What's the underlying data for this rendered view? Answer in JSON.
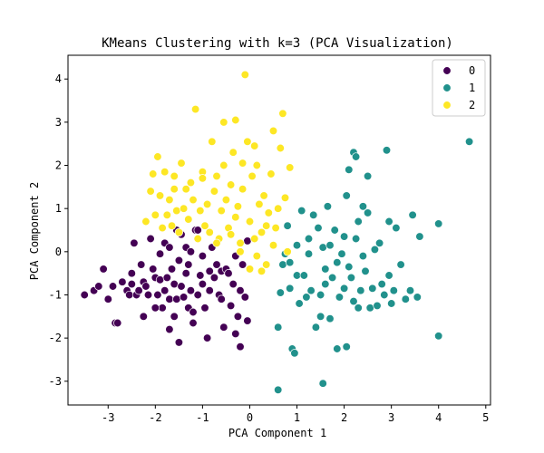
{
  "chart_data": {
    "type": "scatter",
    "title": "KMeans Clustering with k=3 (PCA Visualization)",
    "xlabel": "PCA Component 1",
    "ylabel": "PCA Component 2",
    "xlim": [
      -3.85,
      5.1
    ],
    "ylim": [
      -3.55,
      4.55
    ],
    "xticks": [
      "-3",
      "-2",
      "-1",
      "0",
      "1",
      "2",
      "3",
      "4",
      "5"
    ],
    "yticks": [
      "-3",
      "-2",
      "-1",
      "0",
      "1",
      "2",
      "3",
      "4"
    ],
    "grid": false,
    "legend_position": "top-right",
    "series": [
      {
        "name": "0",
        "color": "#440154",
        "points": [
          [
            -3.5,
            -1.0
          ],
          [
            -3.3,
            -0.9
          ],
          [
            -3.2,
            -0.8
          ],
          [
            -3.1,
            -0.4
          ],
          [
            -3.0,
            -1.1
          ],
          [
            -2.9,
            -0.8
          ],
          [
            -2.85,
            -1.65
          ],
          [
            -2.8,
            -1.65
          ],
          [
            -2.7,
            -0.7
          ],
          [
            -2.6,
            -0.9
          ],
          [
            -2.55,
            -1.0
          ],
          [
            -2.5,
            -0.5
          ],
          [
            -2.5,
            -0.75
          ],
          [
            -2.45,
            0.2
          ],
          [
            -2.4,
            -1.0
          ],
          [
            -2.35,
            -0.9
          ],
          [
            -2.3,
            -0.3
          ],
          [
            -2.25,
            -1.5
          ],
          [
            -2.25,
            -0.7
          ],
          [
            -2.2,
            -0.8
          ],
          [
            -2.15,
            -1.0
          ],
          [
            -2.1,
            0.3
          ],
          [
            -2.05,
            -0.4
          ],
          [
            -2.0,
            -0.6
          ],
          [
            -1.95,
            -1.0
          ],
          [
            -1.9,
            -0.05
          ],
          [
            -1.9,
            -0.65
          ],
          [
            -1.85,
            -1.3
          ],
          [
            -1.8,
            0.2
          ],
          [
            -1.8,
            -0.9
          ],
          [
            -1.75,
            -0.6
          ],
          [
            -1.7,
            0.1
          ],
          [
            -1.7,
            -1.1
          ],
          [
            -1.65,
            -0.4
          ],
          [
            -1.6,
            -0.75
          ],
          [
            -1.6,
            -1.5
          ],
          [
            -1.55,
            0.5
          ],
          [
            -1.55,
            -1.1
          ],
          [
            -1.5,
            -0.2
          ],
          [
            -1.5,
            -2.1
          ],
          [
            -1.45,
            0.4
          ],
          [
            -1.45,
            -0.8
          ],
          [
            -1.4,
            -1.05
          ],
          [
            -1.35,
            0.1
          ],
          [
            -1.35,
            -0.5
          ],
          [
            -1.3,
            -0.3
          ],
          [
            -1.3,
            -1.3
          ],
          [
            -1.25,
            0.0
          ],
          [
            -1.25,
            -0.9
          ],
          [
            -1.2,
            -1.65
          ],
          [
            -1.15,
            0.5
          ],
          [
            -1.1,
            0.5
          ],
          [
            -1.1,
            -1.0
          ],
          [
            -1.05,
            -0.55
          ],
          [
            -1.0,
            -0.1
          ],
          [
            -1.0,
            -0.75
          ],
          [
            -0.95,
            -1.3
          ],
          [
            -0.9,
            -2.0
          ],
          [
            -0.85,
            -0.45
          ],
          [
            -0.8,
            0.1
          ],
          [
            -0.75,
            -0.6
          ],
          [
            -0.7,
            -0.3
          ],
          [
            -0.65,
            -1.0
          ],
          [
            -0.6,
            -0.45
          ],
          [
            -0.55,
            -1.75
          ],
          [
            -0.5,
            -0.4
          ],
          [
            -0.45,
            -0.5
          ],
          [
            -0.4,
            -1.25
          ],
          [
            -0.35,
            -0.75
          ],
          [
            -0.3,
            -0.1
          ],
          [
            -0.25,
            -1.5
          ],
          [
            -0.2,
            -0.9
          ],
          [
            -0.15,
            -0.3
          ],
          [
            -0.1,
            -1.05
          ],
          [
            -0.05,
            0.25
          ],
          [
            -1.2,
            -1.4
          ],
          [
            -1.7,
            -1.8
          ],
          [
            -0.6,
            -1.1
          ],
          [
            -2.0,
            -1.3
          ],
          [
            -0.3,
            -1.9
          ],
          [
            -0.2,
            -2.2
          ],
          [
            -0.05,
            -1.6
          ],
          [
            -0.85,
            -0.9
          ]
        ]
      },
      {
        "name": "1",
        "color": "#21918c",
        "points": [
          [
            0.6,
            -3.2
          ],
          [
            0.6,
            -1.75
          ],
          [
            0.65,
            -0.95
          ],
          [
            0.7,
            -0.3
          ],
          [
            0.75,
            -0.05
          ],
          [
            0.8,
            0.6
          ],
          [
            0.85,
            -0.85
          ],
          [
            0.85,
            -0.25
          ],
          [
            0.9,
            -2.25
          ],
          [
            0.95,
            -2.35
          ],
          [
            1.0,
            -0.55
          ],
          [
            1.0,
            0.15
          ],
          [
            1.05,
            -1.2
          ],
          [
            1.1,
            0.95
          ],
          [
            1.15,
            -0.55
          ],
          [
            1.2,
            -1.05
          ],
          [
            1.25,
            0.3
          ],
          [
            1.25,
            -0.05
          ],
          [
            1.3,
            -0.9
          ],
          [
            1.35,
            0.85
          ],
          [
            1.4,
            -1.75
          ],
          [
            1.45,
            0.55
          ],
          [
            1.5,
            -1.0
          ],
          [
            1.5,
            -1.5
          ],
          [
            1.55,
            -3.05
          ],
          [
            1.55,
            0.1
          ],
          [
            1.6,
            -0.4
          ],
          [
            1.65,
            1.05
          ],
          [
            1.7,
            -1.55
          ],
          [
            1.75,
            -0.6
          ],
          [
            1.8,
            0.5
          ],
          [
            1.85,
            -0.25
          ],
          [
            1.85,
            -2.25
          ],
          [
            1.9,
            -1.05
          ],
          [
            1.95,
            -0.05
          ],
          [
            2.0,
            0.35
          ],
          [
            2.05,
            1.3
          ],
          [
            2.05,
            -2.2
          ],
          [
            2.1,
            -0.35
          ],
          [
            2.1,
            1.9
          ],
          [
            2.15,
            -0.6
          ],
          [
            2.2,
            -1.15
          ],
          [
            2.2,
            2.3
          ],
          [
            2.25,
            0.3
          ],
          [
            2.3,
            -1.3
          ],
          [
            2.3,
            0.7
          ],
          [
            2.35,
            -0.9
          ],
          [
            2.4,
            1.05
          ],
          [
            2.45,
            -0.45
          ],
          [
            2.5,
            0.9
          ],
          [
            2.5,
            1.75
          ],
          [
            2.55,
            -1.3
          ],
          [
            2.6,
            -0.85
          ],
          [
            2.65,
            0.05
          ],
          [
            2.7,
            -1.25
          ],
          [
            2.75,
            0.2
          ],
          [
            2.8,
            -0.75
          ],
          [
            2.85,
            -1.0
          ],
          [
            2.9,
            2.35
          ],
          [
            2.95,
            -0.55
          ],
          [
            3.0,
            -1.2
          ],
          [
            3.05,
            -0.9
          ],
          [
            3.1,
            0.55
          ],
          [
            3.2,
            -0.3
          ],
          [
            3.3,
            -1.1
          ],
          [
            3.4,
            -0.9
          ],
          [
            3.45,
            0.85
          ],
          [
            3.55,
            -1.05
          ],
          [
            3.6,
            0.35
          ],
          [
            4.0,
            0.65
          ],
          [
            4.0,
            -1.95
          ],
          [
            4.65,
            2.55
          ],
          [
            2.95,
            0.7
          ],
          [
            2.25,
            2.2
          ],
          [
            1.7,
            0.15
          ],
          [
            1.6,
            -0.75
          ],
          [
            2.4,
            -0.1
          ],
          [
            2.0,
            -0.85
          ]
        ]
      },
      {
        "name": "2",
        "color": "#fde725",
        "points": [
          [
            -2.2,
            0.7
          ],
          [
            -2.1,
            1.4
          ],
          [
            -2.05,
            1.8
          ],
          [
            -2.0,
            0.85
          ],
          [
            -1.95,
            2.2
          ],
          [
            -1.9,
            1.3
          ],
          [
            -1.85,
            0.55
          ],
          [
            -1.8,
            1.85
          ],
          [
            -1.75,
            0.85
          ],
          [
            -1.7,
            1.2
          ],
          [
            -1.65,
            0.6
          ],
          [
            -1.6,
            1.75
          ],
          [
            -1.55,
            0.95
          ],
          [
            -1.5,
            0.45
          ],
          [
            -1.45,
            2.05
          ],
          [
            -1.4,
            1.0
          ],
          [
            -1.35,
            1.45
          ],
          [
            -1.3,
            0.75
          ],
          [
            -1.25,
            1.6
          ],
          [
            -1.2,
            1.2
          ],
          [
            -1.15,
            3.3
          ],
          [
            -1.1,
            0.3
          ],
          [
            -1.05,
            0.95
          ],
          [
            -1.0,
            1.85
          ],
          [
            -0.95,
            0.6
          ],
          [
            -0.9,
            1.1
          ],
          [
            -0.85,
            0.45
          ],
          [
            -0.8,
            2.55
          ],
          [
            -0.75,
            1.4
          ],
          [
            -0.7,
            1.75
          ],
          [
            -0.65,
            0.3
          ],
          [
            -0.6,
            0.95
          ],
          [
            -0.55,
            2.0
          ],
          [
            -0.5,
            1.2
          ],
          [
            -0.45,
            0.55
          ],
          [
            -0.4,
            1.55
          ],
          [
            -0.35,
            2.3
          ],
          [
            -0.3,
            0.8
          ],
          [
            -0.25,
            1.05
          ],
          [
            -0.2,
            0.2
          ],
          [
            -0.15,
            1.45
          ],
          [
            -0.1,
            4.1
          ],
          [
            -0.05,
            2.55
          ],
          [
            0.0,
            0.7
          ],
          [
            0.05,
            1.75
          ],
          [
            0.1,
            0.3
          ],
          [
            0.15,
            2.0
          ],
          [
            0.2,
            1.1
          ],
          [
            0.25,
            0.45
          ],
          [
            0.3,
            1.3
          ],
          [
            0.35,
            -0.3
          ],
          [
            0.4,
            0.9
          ],
          [
            0.45,
            1.8
          ],
          [
            0.5,
            2.8
          ],
          [
            0.55,
            0.55
          ],
          [
            0.6,
            1.0
          ],
          [
            0.65,
            2.4
          ],
          [
            0.7,
            3.2
          ],
          [
            0.75,
            1.25
          ],
          [
            0.8,
            0.0
          ],
          [
            0.85,
            1.95
          ],
          [
            -0.55,
            3.0
          ],
          [
            -0.3,
            3.05
          ],
          [
            0.1,
            2.45
          ],
          [
            -1.0,
            1.7
          ],
          [
            -0.7,
            0.2
          ],
          [
            0.25,
            -0.45
          ],
          [
            -0.2,
            0.0
          ],
          [
            0.0,
            -0.4
          ],
          [
            -1.6,
            1.45
          ],
          [
            0.5,
            0.15
          ],
          [
            -0.4,
            0.4
          ],
          [
            0.35,
            0.6
          ],
          [
            0.15,
            -0.1
          ],
          [
            -0.15,
            2.05
          ]
        ]
      }
    ]
  }
}
